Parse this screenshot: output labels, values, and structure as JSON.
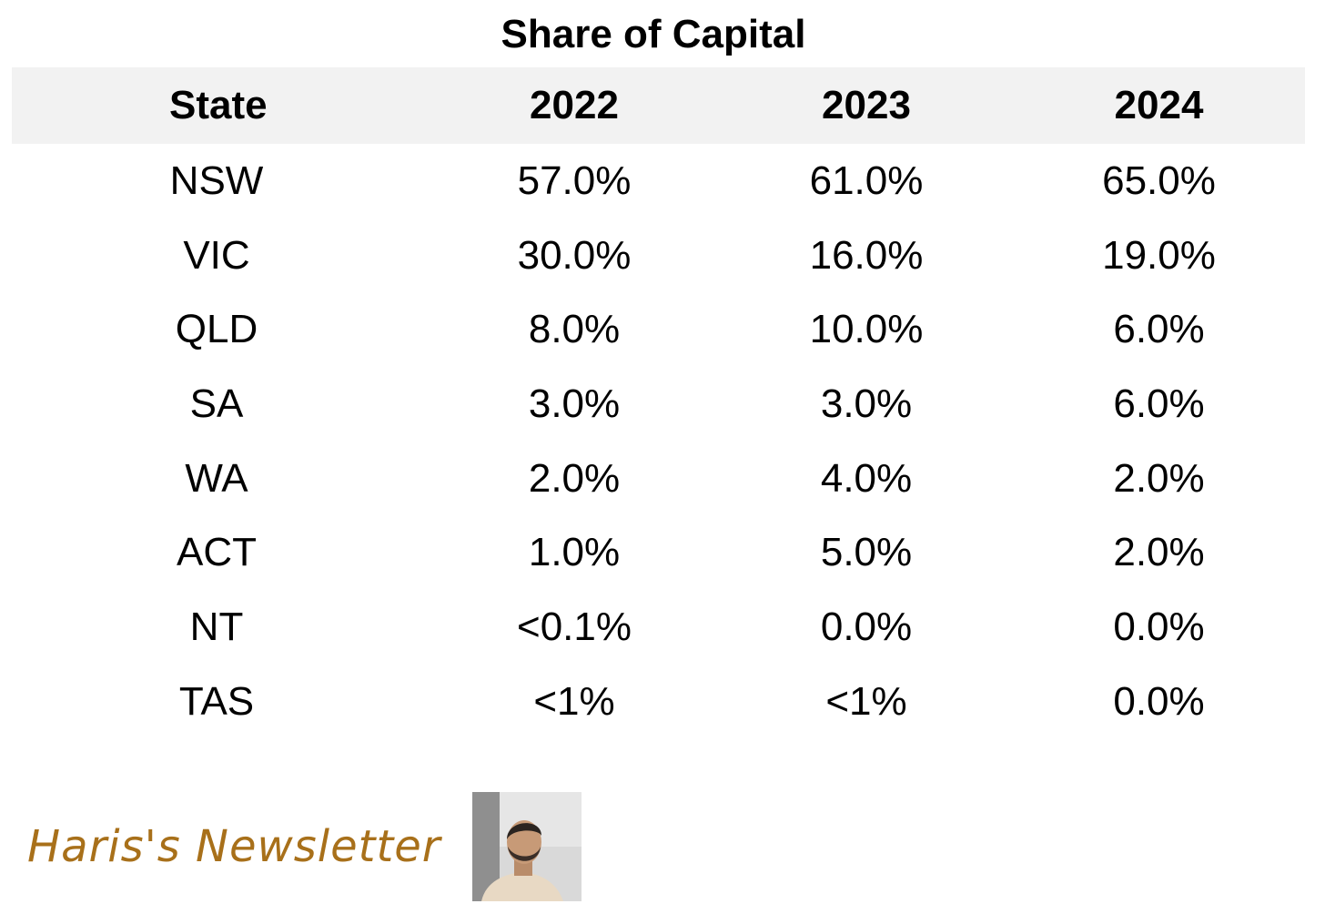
{
  "chart_data": {
    "type": "table",
    "title": "Share of Capital",
    "columns": [
      "State",
      "2022",
      "2023",
      "2024"
    ],
    "rows": [
      [
        "NSW",
        "57.0%",
        "61.0%",
        "65.0%"
      ],
      [
        "VIC",
        "30.0%",
        "16.0%",
        "19.0%"
      ],
      [
        "QLD",
        "8.0%",
        "10.0%",
        "6.0%"
      ],
      [
        "SA",
        "3.0%",
        "3.0%",
        "6.0%"
      ],
      [
        "WA",
        "2.0%",
        "4.0%",
        "2.0%"
      ],
      [
        "ACT",
        "1.0%",
        "5.0%",
        "2.0%"
      ],
      [
        "NT",
        "<0.1%",
        "0.0%",
        "0.0%"
      ],
      [
        "TAS",
        "<1%",
        "<1%",
        "0.0%"
      ]
    ]
  },
  "branding": {
    "newsletter_name": "Haris's Newsletter",
    "brand_color": "#a8701a",
    "avatar_icon": "person-photo-icon"
  },
  "colors": {
    "header_bg": "#f2f2f2",
    "text": "#000000"
  }
}
